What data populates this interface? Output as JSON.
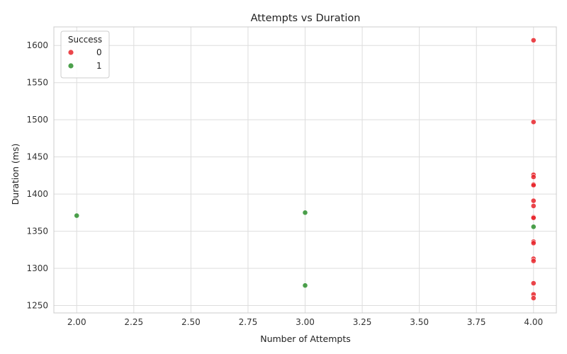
{
  "chart_data": {
    "type": "scatter",
    "title": "Attempts vs Duration",
    "xlabel": "Number of Attempts",
    "ylabel": "Duration (ms)",
    "xlim": [
      1.9,
      4.1
    ],
    "ylim": [
      1240,
      1625
    ],
    "xticks": [
      2.0,
      2.25,
      2.5,
      2.75,
      3.0,
      3.25,
      3.5,
      3.75,
      4.0
    ],
    "xtick_labels": [
      "2.00",
      "2.25",
      "2.50",
      "2.75",
      "3.00",
      "3.25",
      "3.50",
      "3.75",
      "4.00"
    ],
    "yticks": [
      1250,
      1300,
      1350,
      1400,
      1450,
      1500,
      1550,
      1600
    ],
    "ytick_labels": [
      "1250",
      "1300",
      "1350",
      "1400",
      "1450",
      "1500",
      "1550",
      "1600"
    ],
    "grid": true,
    "legend": {
      "title": "Success",
      "placement": "top-left"
    },
    "series": [
      {
        "name": "0",
        "color": "#e8262b",
        "points": [
          {
            "x": 4,
            "y": 1607
          },
          {
            "x": 4,
            "y": 1497
          },
          {
            "x": 4,
            "y": 1426
          },
          {
            "x": 4,
            "y": 1423
          },
          {
            "x": 4,
            "y": 1413
          },
          {
            "x": 4,
            "y": 1412
          },
          {
            "x": 4,
            "y": 1391
          },
          {
            "x": 4,
            "y": 1384
          },
          {
            "x": 4,
            "y": 1369
          },
          {
            "x": 4,
            "y": 1368
          },
          {
            "x": 4,
            "y": 1336
          },
          {
            "x": 4,
            "y": 1334
          },
          {
            "x": 4,
            "y": 1313
          },
          {
            "x": 4,
            "y": 1310
          },
          {
            "x": 4,
            "y": 1280
          },
          {
            "x": 4,
            "y": 1265
          },
          {
            "x": 4,
            "y": 1260
          }
        ]
      },
      {
        "name": "1",
        "color": "#2d8f2d",
        "points": [
          {
            "x": 2,
            "y": 1371
          },
          {
            "x": 3,
            "y": 1375
          },
          {
            "x": 3,
            "y": 1277
          },
          {
            "x": 4,
            "y": 1356
          }
        ]
      }
    ]
  }
}
